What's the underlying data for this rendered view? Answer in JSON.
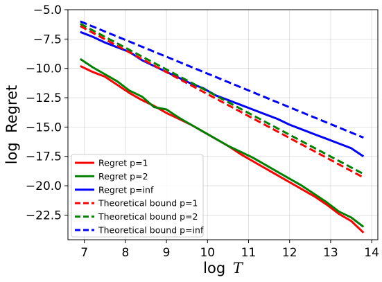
{
  "chart_data": {
    "type": "line",
    "xlabel_base": "log",
    "xlabel_var": "T",
    "ylabel": "log  Regret",
    "xlim": [
      6.6,
      14.15
    ],
    "ylim": [
      -24.6,
      -5.0
    ],
    "xticks": [
      7,
      8,
      9,
      10,
      11,
      12,
      13,
      14
    ],
    "yticks": [
      -5.0,
      -7.5,
      -10.0,
      -12.5,
      -15.0,
      -17.5,
      -20.0,
      -22.5
    ],
    "ytick_labels": [
      "−5.0",
      "−7.5",
      "−10.0",
      "−12.5",
      "−15.0",
      "−17.5",
      "−20.0",
      "−22.5"
    ],
    "grid": true,
    "legend_position": "lower-left",
    "series": [
      {
        "name": "Regret p=1",
        "color": "#ff0000",
        "dash": "solid",
        "x": [
          6.9,
          7.2,
          7.5,
          7.8,
          8.1,
          8.4,
          8.7,
          9.0,
          9.3,
          9.6,
          9.9,
          10.2,
          10.5,
          10.8,
          11.1,
          11.4,
          11.7,
          12.0,
          12.3,
          12.6,
          12.9,
          13.2,
          13.5,
          13.8
        ],
        "y": [
          -9.8,
          -10.3,
          -10.7,
          -11.4,
          -12.1,
          -12.7,
          -13.2,
          -13.8,
          -14.3,
          -14.8,
          -15.4,
          -16.0,
          -16.6,
          -17.3,
          -17.9,
          -18.5,
          -19.1,
          -19.7,
          -20.3,
          -20.9,
          -21.6,
          -22.4,
          -23.0,
          -24.0
        ]
      },
      {
        "name": "Regret p=2",
        "color": "#008000",
        "dash": "solid",
        "x": [
          6.9,
          7.2,
          7.5,
          7.8,
          8.1,
          8.4,
          8.7,
          9.0,
          9.3,
          9.6,
          9.9,
          10.2,
          10.5,
          10.8,
          11.1,
          11.4,
          11.7,
          12.0,
          12.3,
          12.6,
          12.9,
          13.2,
          13.5,
          13.8
        ],
        "y": [
          -9.2,
          -9.9,
          -10.5,
          -11.1,
          -11.9,
          -12.4,
          -13.3,
          -13.5,
          -14.2,
          -14.8,
          -15.4,
          -16.0,
          -16.6,
          -17.1,
          -17.6,
          -18.2,
          -18.8,
          -19.4,
          -20.0,
          -20.7,
          -21.4,
          -22.2,
          -22.7,
          -23.5
        ]
      },
      {
        "name": "Regret p=inf",
        "color": "#0000ff",
        "dash": "solid",
        "x": [
          6.9,
          7.2,
          7.5,
          7.8,
          8.1,
          8.4,
          8.7,
          9.0,
          9.3,
          9.6,
          9.9,
          10.2,
          10.5,
          10.8,
          11.1,
          11.4,
          11.7,
          12.0,
          12.3,
          12.6,
          12.9,
          13.2,
          13.5,
          13.8
        ],
        "y": [
          -6.9,
          -7.3,
          -7.8,
          -8.2,
          -8.6,
          -9.3,
          -9.8,
          -10.3,
          -10.8,
          -11.3,
          -11.7,
          -12.3,
          -12.7,
          -13.1,
          -13.5,
          -13.9,
          -14.3,
          -14.8,
          -15.2,
          -15.6,
          -16.0,
          -16.4,
          -16.8,
          -17.5
        ]
      },
      {
        "name": "Theoretical bound p=1",
        "color": "#ff0000",
        "dash": "dashed",
        "x": [
          6.9,
          13.8
        ],
        "y": [
          -6.4,
          -19.3
        ]
      },
      {
        "name": "Theoretical bound p=2",
        "color": "#008000",
        "dash": "dashed",
        "x": [
          6.9,
          13.8
        ],
        "y": [
          -6.2,
          -19.0
        ]
      },
      {
        "name": "Theoretical bound p=inf",
        "color": "#0000ff",
        "dash": "dashed",
        "x": [
          6.9,
          13.8
        ],
        "y": [
          -6.0,
          -15.9
        ]
      }
    ]
  }
}
